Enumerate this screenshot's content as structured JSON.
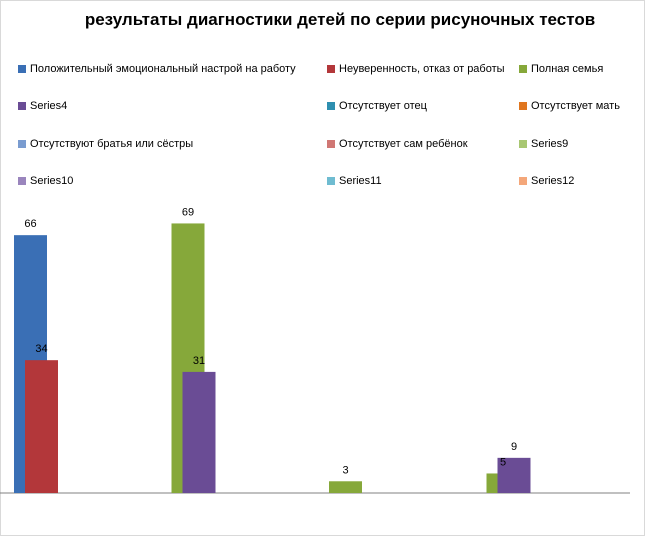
{
  "chart_data": {
    "type": "bar",
    "title": "результаты диагностики детей по серии рисуночных тестов",
    "xlabel": "",
    "ylabel": "",
    "ylim": [
      0,
      75
    ],
    "categories": [
      "",
      "",
      "",
      ""
    ],
    "legend_position": "top",
    "series": [
      {
        "name": "Положительный эмоциональный настрой на работу",
        "color": "#3a6fb5",
        "values": [
          66,
          null,
          null,
          null
        ]
      },
      {
        "name": "Неуверенность, отказ от работы",
        "color": "#b3373a",
        "values": [
          34,
          null,
          null,
          null
        ]
      },
      {
        "name": "Полная семья",
        "color": "#86a83a",
        "values": [
          null,
          69,
          3,
          5
        ]
      },
      {
        "name": "Series4",
        "color": "#6a4c95",
        "values": [
          null,
          31,
          null,
          9
        ]
      },
      {
        "name": "Отсутствует отец",
        "color": "#2e8fb0",
        "values": [
          null,
          null,
          null,
          null
        ]
      },
      {
        "name": "Отсутствует мать",
        "color": "#e0761f",
        "values": [
          null,
          null,
          null,
          null
        ]
      },
      {
        "name": "Отсутствуют братья или сёстры",
        "color": "#7a9cd0",
        "values": [
          null,
          null,
          null,
          null
        ]
      },
      {
        "name": "Отсутствует сам ребёнок",
        "color": "#d07774",
        "values": [
          null,
          null,
          null,
          null
        ]
      },
      {
        "name": "Series9",
        "color": "#a8c772",
        "values": [
          null,
          null,
          null,
          null
        ]
      },
      {
        "name": "Series10",
        "color": "#9a85bd",
        "values": [
          null,
          null,
          null,
          null
        ]
      },
      {
        "name": "Series11",
        "color": "#6fbcd1",
        "values": [
          null,
          null,
          null,
          null
        ]
      },
      {
        "name": "Series12",
        "color": "#f4a77a",
        "values": [
          null,
          null,
          null,
          null
        ]
      }
    ]
  }
}
